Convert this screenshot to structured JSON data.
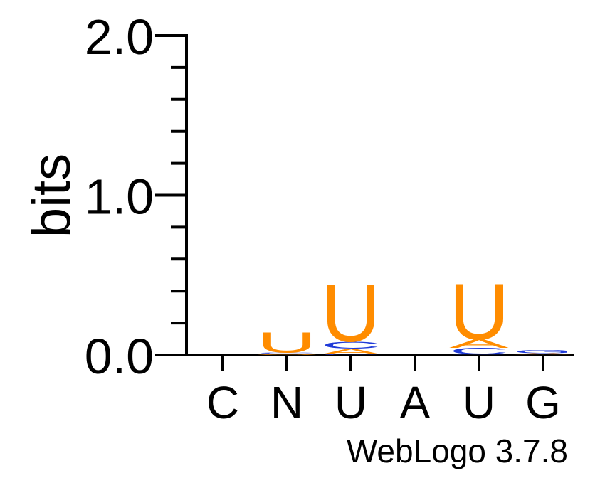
{
  "chart_data": {
    "type": "sequence-logo",
    "ylabel": "bits",
    "ylim": [
      0,
      2.0
    ],
    "y_ticks": [
      {
        "value": 0.0,
        "label": "0.0"
      },
      {
        "value": 1.0,
        "label": "1.0"
      },
      {
        "value": 2.0,
        "label": "2.0"
      }
    ],
    "y_minor_step": 0.2,
    "positions": [
      "C",
      "N",
      "U",
      "A",
      "U",
      "G"
    ],
    "stacks": [
      [],
      [
        {
          "letter": "A",
          "bits": 0.01
        },
        {
          "letter": "C",
          "bits": 0.006
        },
        {
          "letter": "U",
          "bits": 0.13
        }
      ],
      [
        {
          "letter": "C",
          "bits": 0.005
        },
        {
          "letter": "A",
          "bits": 0.035
        },
        {
          "letter": "C",
          "bits": 0.045
        },
        {
          "letter": "U",
          "bits": 0.37
        }
      ],
      [],
      [
        {
          "letter": "C",
          "bits": 0.004
        },
        {
          "letter": "C",
          "bits": 0.04
        },
        {
          "letter": "A",
          "bits": 0.055
        },
        {
          "letter": "U",
          "bits": 0.36
        }
      ],
      [
        {
          "letter": "A",
          "bits": 0.004
        },
        {
          "letter": "A",
          "bits": 0.008
        },
        {
          "letter": "G",
          "bits": 0.02
        }
      ]
    ],
    "colors": {
      "U": "#ff8c00",
      "A": "#ff8c00",
      "C": "#1f3ad8",
      "G": "#1f3ad8",
      "axis": "#000000"
    }
  },
  "footer": {
    "text": "WebLogo 3.7.8"
  }
}
